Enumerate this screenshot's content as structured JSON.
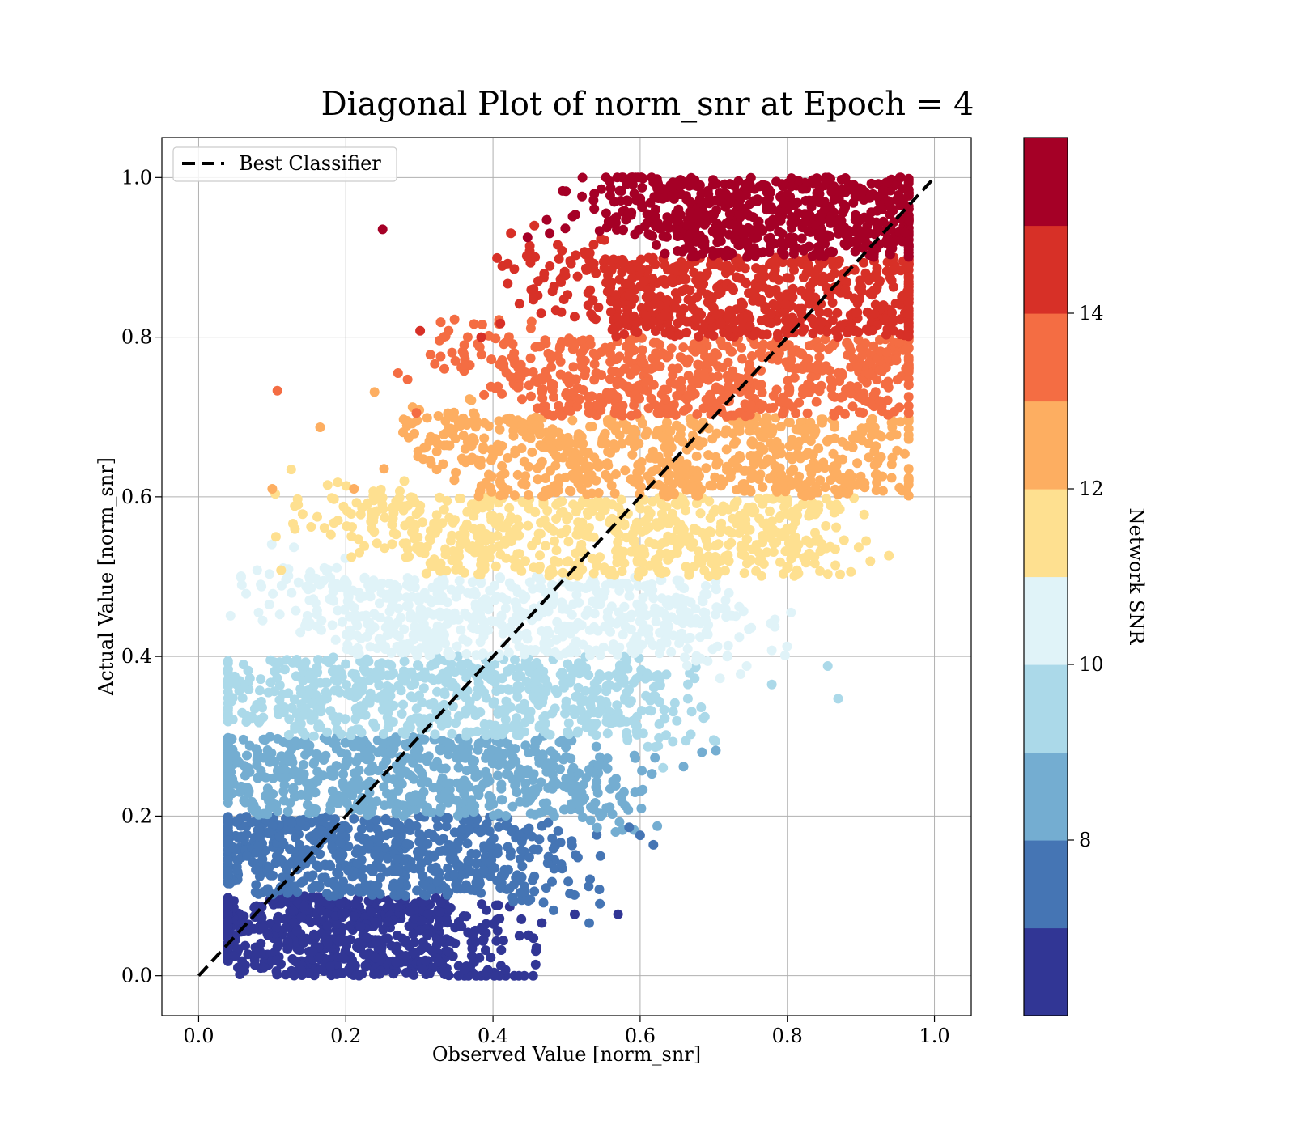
{
  "chart_data": {
    "type": "scatter",
    "title": "Diagonal Plot of norm_snr at Epoch = 4",
    "xlabel": "Observed Value [norm_snr]",
    "ylabel": "Actual Value [norm_snr]",
    "xlim": [
      -0.05,
      1.05
    ],
    "ylim": [
      -0.05,
      1.05
    ],
    "x_ticks": [
      0.0,
      0.2,
      0.4,
      0.6,
      0.8,
      1.0
    ],
    "y_ticks": [
      0.0,
      0.2,
      0.4,
      0.6,
      0.8,
      1.0
    ],
    "x_tick_labels": [
      "0.0",
      "0.2",
      "0.4",
      "0.6",
      "0.8",
      "1.0"
    ],
    "y_tick_labels": [
      "0.0",
      "0.2",
      "0.4",
      "0.6",
      "0.8",
      "1.0"
    ],
    "grid": true,
    "legend": {
      "placement": "top-left",
      "entries": [
        "Best Classifier"
      ]
    },
    "reference_line": {
      "name": "Best Classifier",
      "x": [
        0.0,
        1.0
      ],
      "y": [
        0.0,
        1.0
      ],
      "style": "dashed",
      "color": "#000000"
    },
    "colorbar": {
      "label": "Network SNR",
      "range": [
        6,
        16
      ],
      "ticks": [
        8,
        10,
        12,
        14
      ],
      "tick_labels": [
        "8",
        "10",
        "12",
        "14"
      ],
      "colors": [
        "#313695",
        "#4575b4",
        "#74add1",
        "#abd9e9",
        "#e0f3f8",
        "#fee090",
        "#fdae61",
        "#f46d43",
        "#d73027",
        "#a50026"
      ]
    },
    "bands": [
      {
        "y_range": [
          0.0,
          0.1
        ],
        "x_core": [
          0.05,
          0.34
        ],
        "color": "#313695"
      },
      {
        "y_range": [
          0.1,
          0.2
        ],
        "x_core": [
          0.05,
          0.42
        ],
        "color": "#4575b4"
      },
      {
        "y_range": [
          0.2,
          0.3
        ],
        "x_core": [
          0.06,
          0.5
        ],
        "color": "#74add1"
      },
      {
        "y_range": [
          0.3,
          0.4
        ],
        "x_core": [
          0.12,
          0.58
        ],
        "color": "#abd9e9"
      },
      {
        "y_range": [
          0.4,
          0.5
        ],
        "x_core": [
          0.2,
          0.66
        ],
        "color": "#e0f3f8"
      },
      {
        "y_range": [
          0.5,
          0.6
        ],
        "x_core": [
          0.28,
          0.8
        ],
        "color": "#fee090"
      },
      {
        "y_range": [
          0.6,
          0.7
        ],
        "x_core": [
          0.38,
          0.88
        ],
        "color": "#fdae61"
      },
      {
        "y_range": [
          0.7,
          0.8
        ],
        "x_core": [
          0.46,
          0.92
        ],
        "color": "#f46d43"
      },
      {
        "y_range": [
          0.8,
          0.9
        ],
        "x_core": [
          0.56,
          0.94
        ],
        "color": "#d73027"
      },
      {
        "y_range": [
          0.9,
          1.0
        ],
        "x_core": [
          0.62,
          0.95
        ],
        "color": "#a50026"
      }
    ],
    "outliers": [
      {
        "x": 0.25,
        "y": 0.935,
        "color": "#a50026"
      },
      {
        "x": 0.447,
        "y": 0.925,
        "color": "#a50026"
      },
      {
        "x": 0.473,
        "y": 0.947,
        "color": "#a50026"
      },
      {
        "x": 0.477,
        "y": 0.93,
        "color": "#a50026"
      },
      {
        "x": 0.42,
        "y": 0.892,
        "color": "#d73027"
      },
      {
        "x": 0.42,
        "y": 0.867,
        "color": "#d73027"
      },
      {
        "x": 0.41,
        "y": 0.817,
        "color": "#d73027"
      },
      {
        "x": 0.301,
        "y": 0.808,
        "color": "#d73027"
      },
      {
        "x": 0.384,
        "y": 0.8,
        "color": "#d73027"
      },
      {
        "x": 0.107,
        "y": 0.733,
        "color": "#f46d43"
      },
      {
        "x": 0.271,
        "y": 0.755,
        "color": "#f46d43"
      },
      {
        "x": 0.284,
        "y": 0.747,
        "color": "#f46d43"
      },
      {
        "x": 0.315,
        "y": 0.778,
        "color": "#f46d43"
      },
      {
        "x": 0.361,
        "y": 0.765,
        "color": "#f46d43"
      },
      {
        "x": 0.296,
        "y": 0.705,
        "color": "#f46d43"
      },
      {
        "x": 0.165,
        "y": 0.687,
        "color": "#fdae61"
      },
      {
        "x": 0.1,
        "y": 0.61,
        "color": "#fdae61"
      },
      {
        "x": 0.211,
        "y": 0.61,
        "color": "#fdae61"
      },
      {
        "x": 0.252,
        "y": 0.635,
        "color": "#fdae61"
      },
      {
        "x": 0.105,
        "y": 0.55,
        "color": "#fee090"
      },
      {
        "x": 0.135,
        "y": 0.59,
        "color": "#fee090"
      },
      {
        "x": 0.112,
        "y": 0.508,
        "color": "#fee090"
      },
      {
        "x": 0.087,
        "y": 0.445,
        "color": "#e0f3f8"
      },
      {
        "x": 0.096,
        "y": 0.465,
        "color": "#e0f3f8"
      },
      {
        "x": 0.783,
        "y": 0.437,
        "color": "#e0f3f8"
      },
      {
        "x": 0.805,
        "y": 0.455,
        "color": "#e0f3f8"
      },
      {
        "x": 0.855,
        "y": 0.388,
        "color": "#abd9e9"
      },
      {
        "x": 0.779,
        "y": 0.365,
        "color": "#abd9e9"
      },
      {
        "x": 0.869,
        "y": 0.347,
        "color": "#abd9e9"
      },
      {
        "x": 0.055,
        "y": 0.357,
        "color": "#abd9e9"
      },
      {
        "x": 0.703,
        "y": 0.282,
        "color": "#74add1"
      },
      {
        "x": 0.684,
        "y": 0.28,
        "color": "#74add1"
      },
      {
        "x": 0.659,
        "y": 0.262,
        "color": "#74add1"
      },
      {
        "x": 0.616,
        "y": 0.253,
        "color": "#74add1"
      },
      {
        "x": 0.578,
        "y": 0.23,
        "color": "#74add1"
      },
      {
        "x": 0.04,
        "y": 0.25,
        "color": "#74add1"
      },
      {
        "x": 0.618,
        "y": 0.164,
        "color": "#4575b4"
      },
      {
        "x": 0.6,
        "y": 0.176,
        "color": "#4575b4"
      },
      {
        "x": 0.585,
        "y": 0.186,
        "color": "#4575b4"
      },
      {
        "x": 0.546,
        "y": 0.15,
        "color": "#4575b4"
      },
      {
        "x": 0.53,
        "y": 0.112,
        "color": "#4575b4"
      },
      {
        "x": 0.57,
        "y": 0.077,
        "color": "#313695"
      },
      {
        "x": 0.511,
        "y": 0.077,
        "color": "#313695"
      },
      {
        "x": 0.458,
        "y": 0.014,
        "color": "#313695"
      },
      {
        "x": 0.436,
        "y": 0.05,
        "color": "#313695"
      },
      {
        "x": 0.39,
        "y": 0.032,
        "color": "#313695"
      },
      {
        "x": 0.314,
        "y": 0.003,
        "color": "#313695"
      }
    ]
  }
}
